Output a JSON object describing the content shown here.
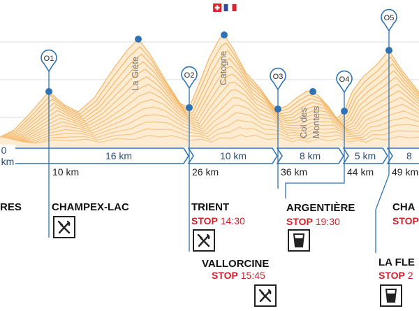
{
  "segments": [
    {
      "label": "0 km"
    },
    {
      "label": "16 km"
    },
    {
      "label": "10 km"
    },
    {
      "label": "8 km"
    },
    {
      "label": "5 km"
    },
    {
      "label": "8"
    }
  ],
  "checkpoints": [
    {
      "code": "O1",
      "km": "10 km"
    },
    {
      "code": "O2",
      "km": "26 km"
    },
    {
      "code": "O3",
      "km": "36 km"
    },
    {
      "code": "O4",
      "km": "44 km"
    },
    {
      "code": "O5",
      "km": "49 km"
    }
  ],
  "towns": {
    "left_cut": "RES",
    "champex": "CHAMPEX-LAC",
    "trient": "TRIENT",
    "trient_stop_word": "STOP",
    "trient_stop_time": "14:30",
    "vallorcine": "VALLORCINE",
    "vallorcine_stop_word": "STOP",
    "vallorcine_stop_time": "15:45",
    "argentiere": "ARGENTIÈRE",
    "argentiere_stop_word": "STOP",
    "argentiere_stop_time": "19:30",
    "cha_cut": "CHA",
    "cha_stop_word": "STOP",
    "laflegere_cut": "LA FLE",
    "laflegere_stop_word": "STOP",
    "laflegere_stop_time": "2"
  },
  "peaks": {
    "la_giete": "La Giète",
    "catogne": "Catogne",
    "col_des_montets": "Col des Montets"
  },
  "icons": {
    "restaurant": "fork-knife-icon",
    "drink": "glass-icon"
  },
  "colors": {
    "profile": "#f3b15c",
    "accent": "#2f73b4",
    "stop": "#d0202a",
    "flag_swiss": "#e0202a",
    "flag_fr_blue": "#3049a0"
  }
}
